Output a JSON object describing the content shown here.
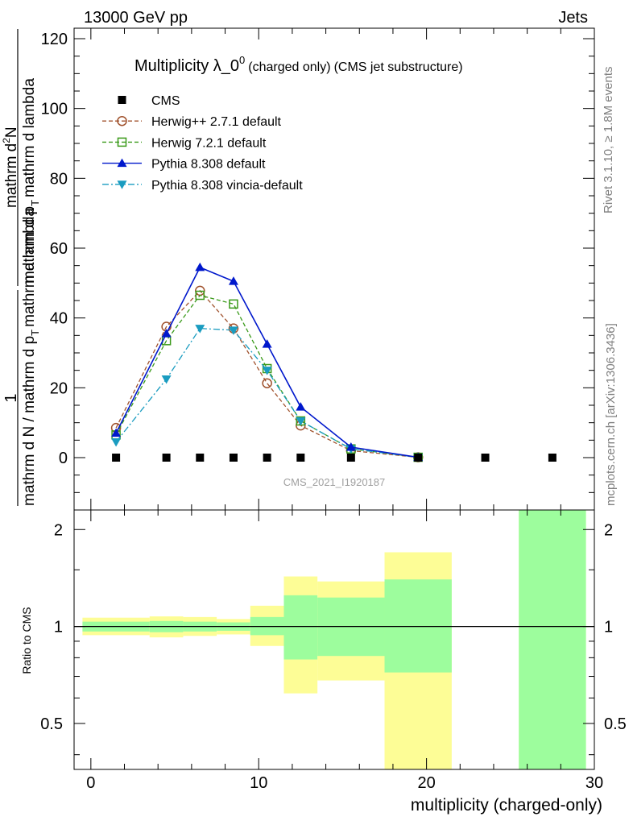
{
  "header": {
    "left": "13000 GeV pp",
    "right": "Jets"
  },
  "side_labels": {
    "rivet": "Rivet 3.1.10, ≥ 1.8M events",
    "mcplots": "mcplots.cern.ch [arXiv:1306.3436]"
  },
  "chart_data": [
    {
      "type": "line",
      "title": "Multiplicity λ_0",
      "title_sup": "0",
      "title_suffix_1": "(charged only)",
      "title_suffix_2": "(CMS jet substructure)",
      "watermark": "CMS_2021_I1920187",
      "ylabel_num": "1",
      "ylabel_den": "mathrm d N / mathrm d p",
      "ylabel_den_sub": "T",
      "ylabel_den_tail": "mathrm d lambda",
      "ylabel_top_num": "mathrm d",
      "ylabel_top_sup": "2",
      "ylabel_top_num_tail": "N",
      "ylabel_top_den": "mathrm d p",
      "ylabel_top_den_sub": "T",
      "ylabel_top_den_tail": "mathrm d lambda",
      "xlim": [
        -1,
        30
      ],
      "ylim": [
        -15,
        123
      ],
      "yticks": [
        0,
        20,
        40,
        60,
        80,
        100,
        120
      ],
      "ytick_labels": [
        "0",
        "20",
        "40",
        "60",
        "80",
        "100",
        "120"
      ],
      "legend_position": "top-left",
      "series": [
        {
          "name": "CMS",
          "color": "#000000",
          "marker": "square-filled",
          "line": "none",
          "x": [
            1.5,
            4.5,
            6.5,
            8.5,
            10.5,
            12.5,
            15.5,
            19.5,
            23.5,
            27.5
          ],
          "values": [
            0,
            0,
            0,
            0,
            0,
            0,
            0,
            0,
            0,
            0
          ]
        },
        {
          "name": "Herwig++ 2.7.1 default",
          "color": "#a0522d",
          "marker": "circle-open",
          "line": "dashed",
          "x": [
            1.5,
            4.5,
            6.5,
            8.5,
            10.5,
            12.5,
            15.5,
            19.5
          ],
          "values": [
            8.5,
            37.5,
            47.8,
            37.0,
            21.3,
            9.2,
            2.0,
            0.1
          ]
        },
        {
          "name": "Herwig 7.2.1 default",
          "color": "#3a9a1a",
          "marker": "square-open",
          "line": "dashed",
          "x": [
            1.5,
            4.5,
            6.5,
            8.5,
            10.5,
            12.5,
            15.5,
            19.5
          ],
          "values": [
            6.5,
            33.5,
            46.5,
            44.0,
            25.5,
            10.5,
            2.5,
            0.1
          ]
        },
        {
          "name": "Pythia 8.308 default",
          "color": "#0018cc",
          "marker": "triangle-up-filled",
          "line": "solid",
          "x": [
            1.5,
            4.5,
            6.5,
            8.5,
            10.5,
            12.5,
            15.5,
            19.5
          ],
          "values": [
            7.0,
            35.5,
            54.5,
            50.5,
            32.5,
            14.5,
            3.0,
            0.1
          ]
        },
        {
          "name": "Pythia 8.308 vincia-default",
          "color": "#1a9cc0",
          "marker": "triangle-down-filled",
          "line": "dashdot",
          "x": [
            1.5,
            4.5,
            6.5,
            8.5,
            10.5,
            12.5,
            15.5,
            19.5
          ],
          "values": [
            4.5,
            22.5,
            37.0,
            36.5,
            25.0,
            10.5,
            2.5,
            0.1
          ]
        }
      ]
    },
    {
      "type": "area",
      "ylabel": "Ratio to CMS",
      "xlabel": "multiplicity (charged-only)",
      "xlim": [
        -1,
        30
      ],
      "ylim": [
        0.36,
        2.3
      ],
      "yscale": "log",
      "yticks": [
        0.5,
        1,
        2
      ],
      "ytick_labels": [
        "0.5",
        "1",
        "2"
      ],
      "xticks": [
        0,
        10,
        20,
        30
      ],
      "xtick_labels": [
        "0",
        "10",
        "20",
        "30"
      ],
      "reference_line": 1,
      "bins": [
        {
          "lo": -0.5,
          "hi": 3.5,
          "inner": [
            0.965,
            1.035
          ],
          "outer": [
            0.94,
            1.065
          ]
        },
        {
          "lo": 3.5,
          "hi": 5.5,
          "inner": [
            0.96,
            1.04
          ],
          "outer": [
            0.925,
            1.075
          ]
        },
        {
          "lo": 5.5,
          "hi": 7.5,
          "inner": [
            0.965,
            1.035
          ],
          "outer": [
            0.935,
            1.07
          ]
        },
        {
          "lo": 7.5,
          "hi": 9.5,
          "inner": [
            0.97,
            1.03
          ],
          "outer": [
            0.945,
            1.055
          ]
        },
        {
          "lo": 9.5,
          "hi": 11.5,
          "inner": [
            0.94,
            1.07
          ],
          "outer": [
            0.87,
            1.16
          ]
        },
        {
          "lo": 11.5,
          "hi": 13.5,
          "inner": [
            0.79,
            1.25
          ],
          "outer": [
            0.62,
            1.43
          ]
        },
        {
          "lo": 13.5,
          "hi": 17.5,
          "inner": [
            0.81,
            1.23
          ],
          "outer": [
            0.68,
            1.38
          ]
        },
        {
          "lo": 17.5,
          "hi": 21.5,
          "inner": [
            0.72,
            1.4
          ],
          "outer": [
            0.34,
            1.7
          ]
        },
        {
          "lo": 25.5,
          "hi": 29.5,
          "inner": [
            0.34,
            2.4
          ],
          "outer": [
            0.34,
            2.4
          ]
        }
      ],
      "band_colors": {
        "inner": "#9dfd9d",
        "outer": "#fdfd96"
      }
    }
  ]
}
